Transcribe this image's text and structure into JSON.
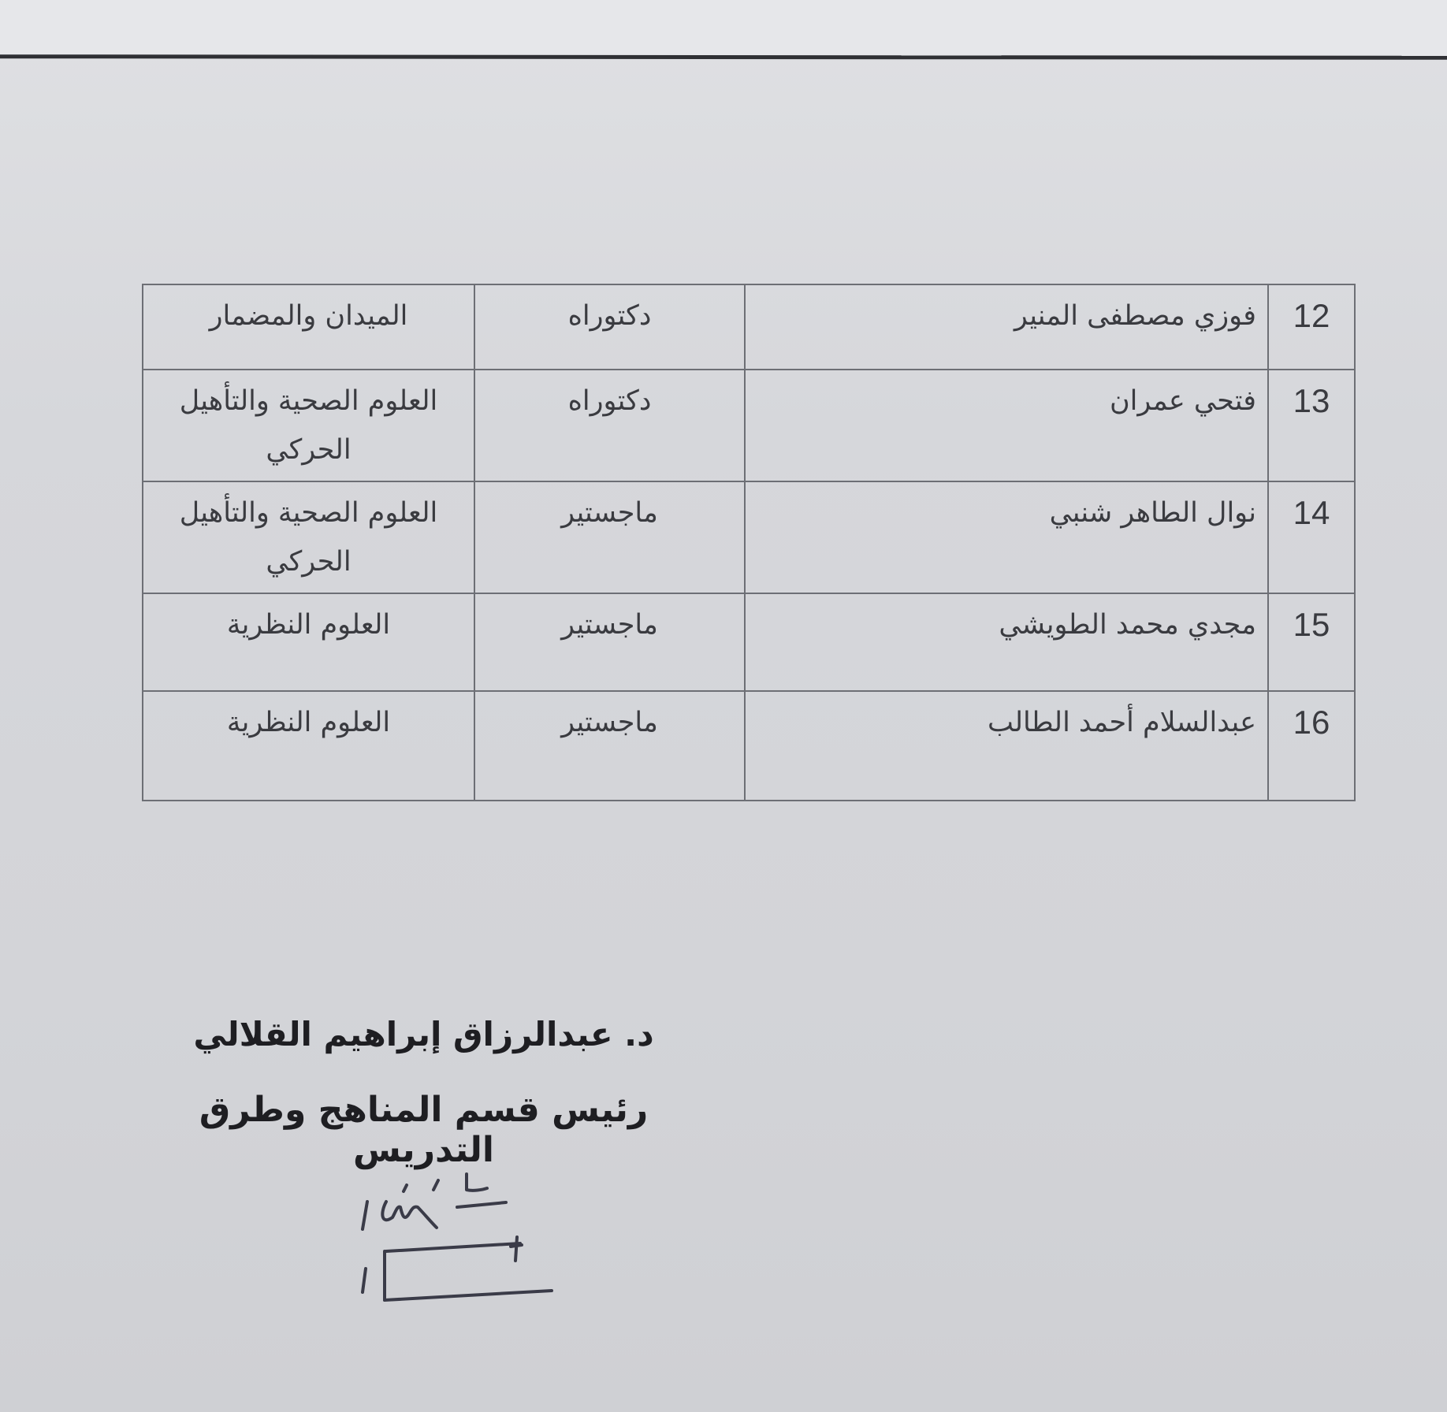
{
  "table": {
    "rows": [
      {
        "num": "12",
        "name": "فوزي مصطفى المنير",
        "degree": "دكتوراه",
        "department": "الميدان والمضمار"
      },
      {
        "num": "13",
        "name": "فتحي عمران",
        "degree": "دكتوراه",
        "department": "العلوم الصحية والتأهيل الحركي"
      },
      {
        "num": "14",
        "name": "نوال الطاهر شنبي",
        "degree": "ماجستير",
        "department": "العلوم الصحية والتأهيل الحركي"
      },
      {
        "num": "15",
        "name": "مجدي محمد الطويشي",
        "degree": "ماجستير",
        "department": "العلوم النظرية"
      },
      {
        "num": "16",
        "name": "عبدالسلام أحمد الطالب",
        "degree": "ماجستير",
        "department": "العلوم النظرية"
      }
    ]
  },
  "signature_block": {
    "name": "د. عبدالرزاق إبراهيم القلالي",
    "title": "رئيس قسم المناهج وطرق التدريس"
  }
}
